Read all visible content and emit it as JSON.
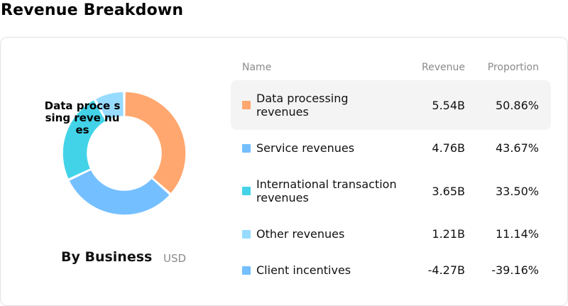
{
  "title": "Revenue Breakdown",
  "chart": {
    "center_label": "Data proce ssing reve nues",
    "group_label": "By Business",
    "currency": "USD"
  },
  "table": {
    "headers": {
      "name": "Name",
      "revenue": "Revenue",
      "proportion": "Proportion"
    },
    "rows": [
      {
        "name": "Data processing revenues",
        "revenue": "5.54B",
        "proportion": "50.86%",
        "color": "#FFA76F"
      },
      {
        "name": "Service revenues",
        "revenue": "4.76B",
        "proportion": "43.67%",
        "color": "#74BFFF"
      },
      {
        "name": "International transaction revenues",
        "revenue": "3.65B",
        "proportion": "33.50%",
        "color": "#43D3E8"
      },
      {
        "name": "Other revenues",
        "revenue": "1.21B",
        "proportion": "11.14%",
        "color": "#97DBFF"
      },
      {
        "name": "Client incentives",
        "revenue": "-4.27B",
        "proportion": "-39.16%",
        "color": "#74BFFF"
      }
    ]
  },
  "chart_data": {
    "type": "pie",
    "categories": [
      "Data processing revenues",
      "Service revenues",
      "International transaction revenues",
      "Other revenues"
    ],
    "values": [
      5.54,
      4.76,
      3.65,
      1.21
    ],
    "colors": [
      "#FFA76F",
      "#74BFFF",
      "#43D3E8",
      "#97DBFF"
    ]
  }
}
